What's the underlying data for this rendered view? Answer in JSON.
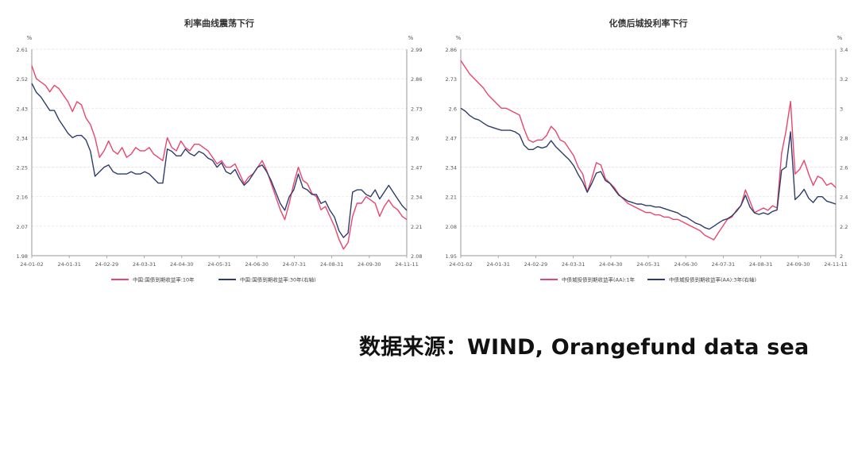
{
  "source_note": "数据来源：WIND, Orangefund data sea",
  "colors": {
    "pink": "#e8466e",
    "navy": "#2e3d6b"
  },
  "chart_data": [
    {
      "type": "line",
      "title": "利率曲线震荡下行",
      "left_unit": "%",
      "right_unit": "%",
      "x_ticks": [
        "24-01-02",
        "24-01-31",
        "24-02-29",
        "24-03-31",
        "24-04-30",
        "24-05-31",
        "24-06-30",
        "24-07-31",
        "24-08-31",
        "24-09-30",
        "24-11-11"
      ],
      "left_axis": {
        "ticks": [
          "2.61",
          "2.52",
          "2.43",
          "2.34",
          "2.25",
          "2.16",
          "2.07",
          "1.98"
        ],
        "ylim": [
          1.98,
          2.61
        ]
      },
      "right_axis": {
        "ticks": [
          "2.99",
          "2.86",
          "2.73",
          "2.6",
          "2.47",
          "2.34",
          "2.21",
          "2.08"
        ],
        "ylim": [
          2.08,
          2.99
        ]
      },
      "legend": [
        "中国:国债到期收益率:10年",
        "中国:国债到期收益率:30年(右轴)"
      ],
      "series": [
        {
          "name": "中国:国债到期收益率:10年",
          "axis": "left",
          "color": "#e8466e",
          "values": [
            2.56,
            2.52,
            2.51,
            2.5,
            2.48,
            2.5,
            2.49,
            2.47,
            2.45,
            2.42,
            2.45,
            2.44,
            2.4,
            2.38,
            2.34,
            2.28,
            2.3,
            2.33,
            2.3,
            2.29,
            2.31,
            2.28,
            2.29,
            2.31,
            2.3,
            2.3,
            2.31,
            2.29,
            2.28,
            2.27,
            2.34,
            2.31,
            2.3,
            2.33,
            2.31,
            2.3,
            2.32,
            2.32,
            2.31,
            2.3,
            2.28,
            2.26,
            2.27,
            2.25,
            2.25,
            2.26,
            2.23,
            2.2,
            2.22,
            2.23,
            2.25,
            2.27,
            2.24,
            2.2,
            2.16,
            2.12,
            2.09,
            2.14,
            2.2,
            2.25,
            2.21,
            2.2,
            2.17,
            2.16,
            2.12,
            2.13,
            2.1,
            2.07,
            2.03,
            2.0,
            2.02,
            2.1,
            2.14,
            2.14,
            2.16,
            2.15,
            2.14,
            2.1,
            2.13,
            2.15,
            2.13,
            2.12,
            2.1,
            2.09
          ]
        },
        {
          "name": "中国:国债到期收益率:30年(右轴)",
          "axis": "right",
          "color": "#2e3d6b",
          "values": [
            2.84,
            2.8,
            2.78,
            2.75,
            2.72,
            2.72,
            2.68,
            2.65,
            2.62,
            2.6,
            2.61,
            2.61,
            2.59,
            2.54,
            2.43,
            2.45,
            2.47,
            2.48,
            2.45,
            2.44,
            2.44,
            2.44,
            2.45,
            2.44,
            2.44,
            2.45,
            2.44,
            2.42,
            2.4,
            2.4,
            2.55,
            2.54,
            2.52,
            2.52,
            2.55,
            2.53,
            2.52,
            2.54,
            2.53,
            2.51,
            2.5,
            2.47,
            2.49,
            2.45,
            2.44,
            2.46,
            2.42,
            2.39,
            2.41,
            2.44,
            2.47,
            2.48,
            2.45,
            2.41,
            2.36,
            2.31,
            2.28,
            2.34,
            2.37,
            2.44,
            2.38,
            2.37,
            2.35,
            2.35,
            2.31,
            2.32,
            2.28,
            2.25,
            2.19,
            2.16,
            2.18,
            2.36,
            2.37,
            2.37,
            2.35,
            2.34,
            2.37,
            2.33,
            2.36,
            2.39,
            2.36,
            2.33,
            2.3,
            2.28
          ]
        }
      ]
    },
    {
      "type": "line",
      "title": "化债后城投利率下行",
      "left_unit": "%",
      "right_unit": "%",
      "x_ticks": [
        "24-01-02",
        "24-01-31",
        "24-02-29",
        "24-03-31",
        "24-04-30",
        "24-05-31",
        "24-06-30",
        "24-07-31",
        "24-08-31",
        "24-09-30",
        "24-11-11"
      ],
      "left_axis": {
        "ticks": [
          "2.86",
          "2.73",
          "2.6",
          "2.47",
          "2.34",
          "2.21",
          "2.08",
          "1.95"
        ],
        "ylim": [
          1.95,
          2.86
        ]
      },
      "right_axis": {
        "ticks": [
          "3.4",
          "3.2",
          "3",
          "2.8",
          "2.6",
          "2.4",
          "2.2",
          "2"
        ],
        "ylim": [
          2.0,
          3.4
        ]
      },
      "legend": [
        "中债城投债到期收益率(AA):1年",
        "中债城投债到期收益率(AA):3年(右轴)"
      ],
      "series": [
        {
          "name": "中债城投债到期收益率(AA):1年",
          "axis": "left",
          "color": "#e8466e",
          "values": [
            2.81,
            2.78,
            2.75,
            2.73,
            2.71,
            2.69,
            2.66,
            2.64,
            2.62,
            2.6,
            2.6,
            2.59,
            2.58,
            2.57,
            2.51,
            2.46,
            2.45,
            2.46,
            2.46,
            2.48,
            2.52,
            2.5,
            2.46,
            2.45,
            2.42,
            2.39,
            2.34,
            2.31,
            2.23,
            2.29,
            2.36,
            2.35,
            2.29,
            2.27,
            2.25,
            2.22,
            2.2,
            2.18,
            2.17,
            2.16,
            2.15,
            2.14,
            2.14,
            2.13,
            2.13,
            2.12,
            2.12,
            2.11,
            2.11,
            2.1,
            2.09,
            2.08,
            2.07,
            2.06,
            2.04,
            2.03,
            2.02,
            2.05,
            2.08,
            2.11,
            2.12,
            2.15,
            2.17,
            2.24,
            2.19,
            2.14,
            2.15,
            2.16,
            2.15,
            2.17,
            2.16,
            2.4,
            2.5,
            2.63,
            2.31,
            2.33,
            2.37,
            2.31,
            2.26,
            2.3,
            2.29,
            2.26,
            2.27,
            2.25
          ]
        },
        {
          "name": "中债城投债到期收益率(AA):3年(右轴)",
          "axis": "right",
          "color": "#2e3d6b",
          "values": [
            3.0,
            2.98,
            2.95,
            2.93,
            2.92,
            2.9,
            2.88,
            2.87,
            2.86,
            2.85,
            2.85,
            2.85,
            2.84,
            2.82,
            2.75,
            2.72,
            2.72,
            2.74,
            2.73,
            2.74,
            2.78,
            2.74,
            2.71,
            2.68,
            2.65,
            2.61,
            2.55,
            2.5,
            2.43,
            2.49,
            2.56,
            2.57,
            2.51,
            2.49,
            2.45,
            2.41,
            2.39,
            2.37,
            2.36,
            2.35,
            2.35,
            2.34,
            2.34,
            2.33,
            2.33,
            2.32,
            2.31,
            2.3,
            2.29,
            2.27,
            2.26,
            2.24,
            2.22,
            2.21,
            2.19,
            2.18,
            2.2,
            2.22,
            2.24,
            2.25,
            2.27,
            2.3,
            2.34,
            2.41,
            2.33,
            2.29,
            2.28,
            2.29,
            2.28,
            2.3,
            2.31,
            2.58,
            2.6,
            2.84,
            2.38,
            2.41,
            2.45,
            2.39,
            2.36,
            2.4,
            2.4,
            2.37,
            2.36,
            2.35
          ]
        }
      ]
    }
  ]
}
